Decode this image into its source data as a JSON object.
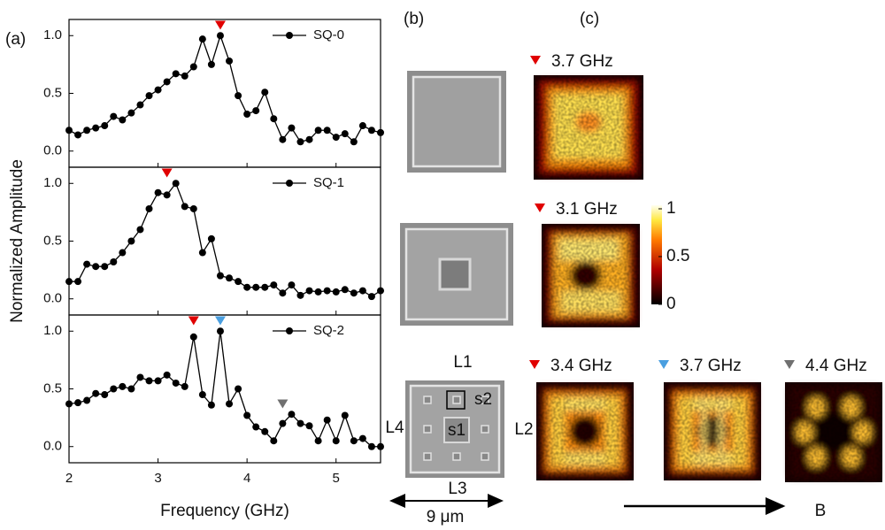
{
  "panel_labels": [
    "(a)",
    "(b)",
    "(c)"
  ],
  "chart_data": [
    {
      "type": "line",
      "xlim": [
        2,
        5.5
      ],
      "xticks": [
        2,
        3,
        4,
        5
      ],
      "ylim": [
        -0.14,
        1.14
      ],
      "yticks": [
        {
          "value": 0,
          "label": "0.0"
        },
        {
          "value": 0.5,
          "label": "0.5"
        },
        {
          "value": 1,
          "label": "1.0"
        }
      ],
      "series": [
        {
          "name": "SQ-0",
          "color": "#000000",
          "x": [
            2.0,
            2.1,
            2.2,
            2.3,
            2.4,
            2.5,
            2.6,
            2.7,
            2.8,
            2.9,
            3.0,
            3.1,
            3.2,
            3.3,
            3.4,
            3.5,
            3.6,
            3.7,
            3.8,
            3.9,
            4.0,
            4.1,
            4.2,
            4.3,
            4.4,
            4.5,
            4.6,
            4.7,
            4.8,
            4.9,
            5.0,
            5.1,
            5.2,
            5.3,
            5.4,
            5.5
          ],
          "values": [
            0.18,
            0.14,
            0.18,
            0.2,
            0.22,
            0.3,
            0.27,
            0.33,
            0.4,
            0.48,
            0.53,
            0.6,
            0.67,
            0.65,
            0.73,
            0.97,
            0.75,
            1.0,
            0.78,
            0.48,
            0.32,
            0.35,
            0.51,
            0.28,
            0.1,
            0.2,
            0.08,
            0.1,
            0.18,
            0.18,
            0.12,
            0.15,
            0.08,
            0.22,
            0.18,
            0.16
          ]
        }
      ],
      "markers": [
        {
          "x": 3.7,
          "y": 1.09,
          "color": "#e00000"
        }
      ]
    },
    {
      "type": "line",
      "xlim": [
        2,
        5.5
      ],
      "xticks": [
        2,
        3,
        4,
        5
      ],
      "ylim": [
        -0.14,
        1.14
      ],
      "yticks": [
        {
          "value": 0,
          "label": "0.0"
        },
        {
          "value": 0.5,
          "label": "0.5"
        },
        {
          "value": 1,
          "label": "1.0"
        }
      ],
      "ylabel": "Normalized Amplitude",
      "series": [
        {
          "name": "SQ-1",
          "color": "#000000",
          "x": [
            2.0,
            2.1,
            2.2,
            2.3,
            2.4,
            2.5,
            2.6,
            2.7,
            2.8,
            2.9,
            3.0,
            3.1,
            3.2,
            3.3,
            3.4,
            3.5,
            3.6,
            3.7,
            3.8,
            3.9,
            4.0,
            4.1,
            4.2,
            4.3,
            4.4,
            4.5,
            4.6,
            4.7,
            4.8,
            4.9,
            5.0,
            5.1,
            5.2,
            5.3,
            5.4,
            5.5
          ],
          "values": [
            0.15,
            0.15,
            0.3,
            0.28,
            0.28,
            0.32,
            0.4,
            0.5,
            0.6,
            0.78,
            0.92,
            0.9,
            1.0,
            0.8,
            0.78,
            0.4,
            0.52,
            0.2,
            0.18,
            0.15,
            0.1,
            0.1,
            0.1,
            0.12,
            0.05,
            0.12,
            0.03,
            0.07,
            0.06,
            0.07,
            0.06,
            0.08,
            0.05,
            0.07,
            0.02,
            0.07
          ]
        }
      ],
      "markers": [
        {
          "x": 3.1,
          "y": 1.09,
          "color": "#e00000"
        }
      ]
    },
    {
      "type": "line",
      "xlim": [
        2,
        5.5
      ],
      "xticks": [
        2,
        3,
        4,
        5
      ],
      "ylim": [
        -0.14,
        1.14
      ],
      "yticks": [
        {
          "value": 0,
          "label": "0.0"
        },
        {
          "value": 0.5,
          "label": "0.5"
        },
        {
          "value": 1,
          "label": "1.0"
        }
      ],
      "xlabel": "Frequency (GHz)",
      "series": [
        {
          "name": "SQ-2",
          "color": "#000000",
          "x": [
            2.0,
            2.1,
            2.2,
            2.3,
            2.4,
            2.5,
            2.6,
            2.7,
            2.8,
            2.9,
            3.0,
            3.1,
            3.2,
            3.3,
            3.4,
            3.5,
            3.6,
            3.7,
            3.8,
            3.9,
            4.0,
            4.1,
            4.2,
            4.3,
            4.4,
            4.5,
            4.6,
            4.7,
            4.8,
            4.9,
            5.0,
            5.1,
            5.2,
            5.3,
            5.4,
            5.5
          ],
          "values": [
            0.37,
            0.38,
            0.4,
            0.46,
            0.45,
            0.5,
            0.52,
            0.5,
            0.6,
            0.57,
            0.57,
            0.62,
            0.55,
            0.52,
            0.95,
            0.45,
            0.36,
            1.0,
            0.37,
            0.5,
            0.27,
            0.17,
            0.13,
            0.05,
            0.2,
            0.28,
            0.2,
            0.18,
            0.05,
            0.23,
            0.05,
            0.27,
            0.05,
            0.07,
            0.0,
            0.0
          ]
        }
      ],
      "markers": [
        {
          "x": 3.4,
          "y": 1.09,
          "color": "#e00000"
        },
        {
          "x": 3.7,
          "y": 1.09,
          "color": "#4a9fe0"
        },
        {
          "x": 4.4,
          "y": 0.37,
          "color": "#707070"
        }
      ]
    }
  ],
  "samples": {
    "edges": [
      "L1",
      "L2",
      "L3",
      "L4"
    ],
    "squares": [
      "s1",
      "s2"
    ],
    "scale": "9 μm"
  },
  "heatmaps": [
    {
      "label": "3.7 GHz",
      "color": "#e00000"
    },
    {
      "label": "3.1 GHz",
      "color": "#e00000"
    },
    {
      "label": "3.4 GHz",
      "color": "#e00000"
    },
    {
      "label": "3.7 GHz",
      "color": "#4a9fe0"
    },
    {
      "label": "4.4 GHz",
      "color": "#707070"
    }
  ],
  "colorbar": {
    "ticks": [
      0,
      0.5,
      1
    ]
  },
  "field_label": "B"
}
